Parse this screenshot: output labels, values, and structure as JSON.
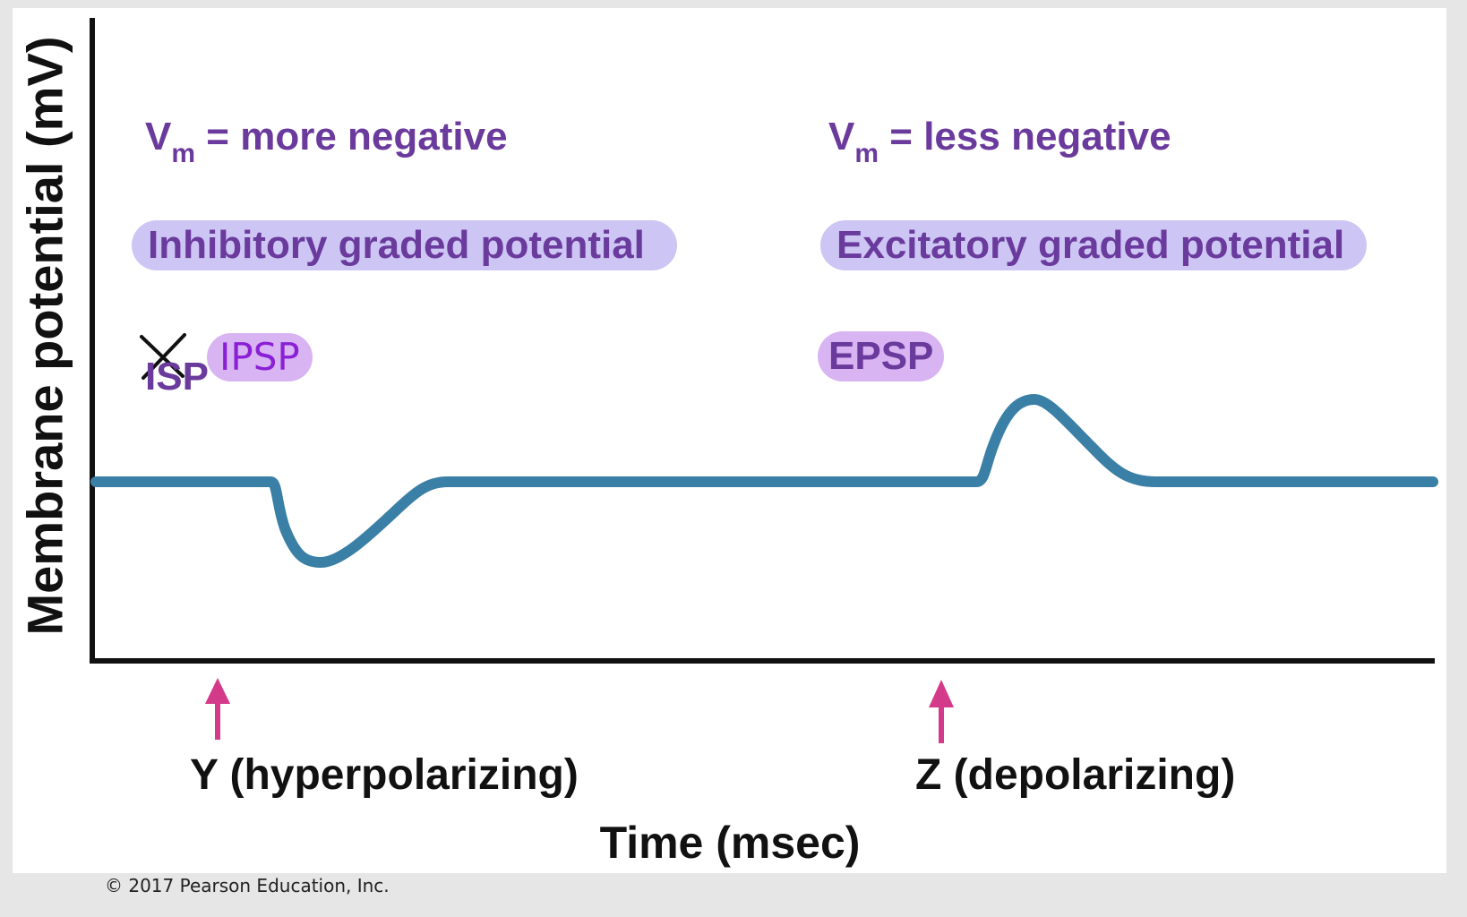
{
  "y_axis_label": "Membrane potential (mV)",
  "x_axis_label": "Time (msec)",
  "left": {
    "vm_symbol": "V",
    "vm_subscript": "m",
    "vm_text": "= more negative",
    "pill": "Inhibitory graded potential",
    "crossed_abbr": "ISP",
    "handwritten_abbr": "IPSP",
    "stimulus": "Y (hyperpolarizing)"
  },
  "right": {
    "vm_symbol": "V",
    "vm_subscript": "m",
    "vm_text": "= less negative",
    "pill": "Excitatory graded potential",
    "abbr": "EPSP",
    "stimulus": "Z (depolarizing)"
  },
  "copyright": "© 2017 Pearson Education, Inc.",
  "colors": {
    "trace": "#3a7fa5",
    "arrow": "#d43a8a",
    "label_purple": "#6a3a9c",
    "pill_fill": "#cdc6f4",
    "handwriting": "#8a1fd6"
  },
  "icons": [
    "stimulus-arrow-icon",
    "cross-out-mark-icon"
  ]
}
